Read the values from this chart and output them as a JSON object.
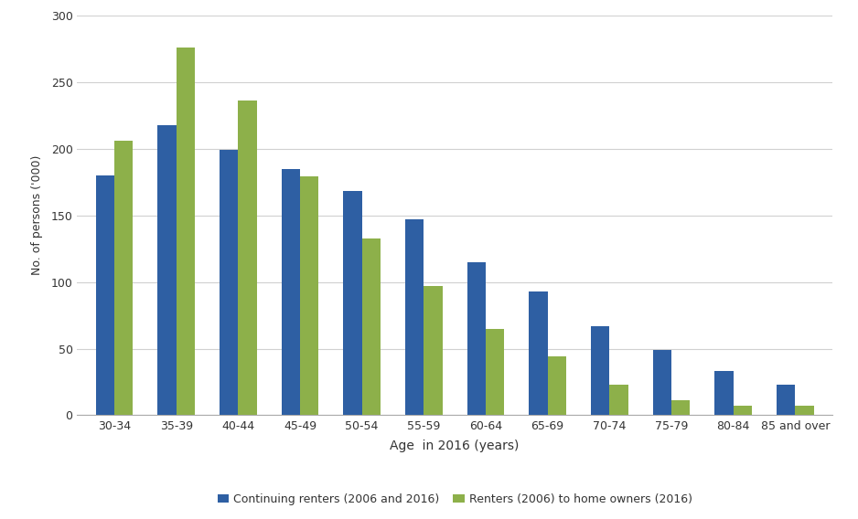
{
  "categories": [
    "30-34",
    "35-39",
    "40-44",
    "45-49",
    "50-54",
    "55-59",
    "60-64",
    "65-69",
    "70-74",
    "75-79",
    "80-84",
    "85 and over"
  ],
  "continuing_renters": [
    180,
    218,
    199,
    185,
    168,
    147,
    115,
    93,
    67,
    49,
    33,
    23
  ],
  "renters_to_owners": [
    206,
    276,
    236,
    179,
    133,
    97,
    65,
    44,
    23,
    11,
    7,
    7
  ],
  "bar_color_renters": "#2E5FA3",
  "bar_color_owners": "#8DB04A",
  "xlabel": "Age  in 2016 (years)",
  "ylabel": "No. of persons ('000)",
  "ylim": [
    0,
    300
  ],
  "yticks": [
    0,
    50,
    100,
    150,
    200,
    250,
    300
  ],
  "legend_label_1": "Continuing renters (2006 and 2016)",
  "legend_label_2": "Renters (2006) to home owners (2016)",
  "background_color": "#ffffff",
  "grid_color": "#d0d0d0"
}
